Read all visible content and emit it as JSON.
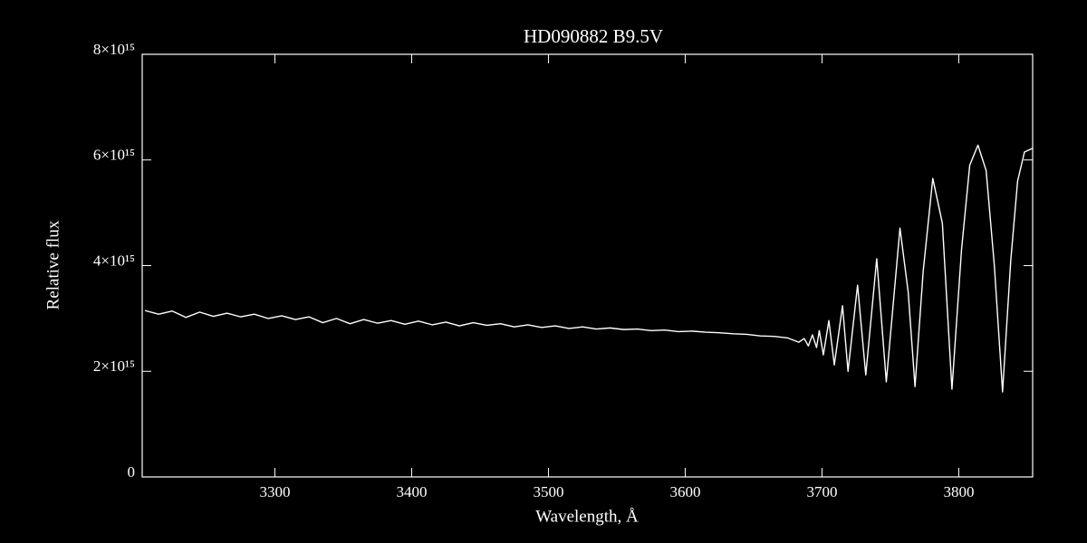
{
  "chart_data": {
    "type": "line",
    "title": "HD090882   B9.5V",
    "x_label": "Wavelength, Å",
    "y_label": "Relative flux",
    "x": [
      3205,
      3215,
      3225,
      3235,
      3245,
      3255,
      3265,
      3275,
      3285,
      3295,
      3305,
      3315,
      3325,
      3335,
      3345,
      3355,
      3365,
      3375,
      3385,
      3395,
      3405,
      3415,
      3425,
      3435,
      3445,
      3455,
      3465,
      3475,
      3485,
      3495,
      3505,
      3515,
      3525,
      3535,
      3545,
      3555,
      3565,
      3575,
      3585,
      3595,
      3605,
      3615,
      3625,
      3635,
      3645,
      3655,
      3665,
      3675,
      3683,
      3687,
      3690,
      3693,
      3696,
      3698,
      3701,
      3705,
      3709,
      3715,
      3719,
      3726,
      3732,
      3740,
      3747,
      3757,
      3763,
      3768,
      3774,
      3781,
      3788,
      3795,
      3802,
      3808,
      3814,
      3820,
      3826,
      3832,
      3838,
      3843,
      3848,
      3854
    ],
    "series": [
      {
        "color": "#ffffff",
        "values": [
          3150000000000000.0,
          3080000000000000.0,
          3140000000000000.0,
          3020000000000000.0,
          3120000000000000.0,
          3040000000000000.0,
          3100000000000000.0,
          3030000000000000.0,
          3080000000000000.0,
          3000000000000000.0,
          3050000000000000.0,
          2980000000000000.0,
          3030000000000000.0,
          2920000000000000.0,
          3000000000000000.0,
          2900000000000000.0,
          2980000000000000.0,
          2910000000000000.0,
          2960000000000000.0,
          2890000000000000.0,
          2950000000000000.0,
          2880000000000000.0,
          2930000000000000.0,
          2860000000000000.0,
          2920000000000000.0,
          2870000000000000.0,
          2900000000000000.0,
          2840000000000000.0,
          2880000000000000.0,
          2830000000000000.0,
          2860000000000000.0,
          2810000000000000.0,
          2840000000000000.0,
          2800000000000000.0,
          2820000000000000.0,
          2790000000000000.0,
          2800000000000000.0,
          2770000000000000.0,
          2780000000000000.0,
          2750000000000000.0,
          2760000000000000.0,
          2740000000000000.0,
          2730000000000000.0,
          2710000000000000.0,
          2700000000000000.0,
          2670000000000000.0,
          2660000000000000.0,
          2630000000000000.0,
          2550000000000000.0,
          2620000000000000.0,
          2480000000000000.0,
          2690000000000000.0,
          2450000000000000.0,
          2770000000000000.0,
          2310000000000000.0,
          2960000000000000.0,
          2120000000000000.0,
          3240000000000000.0,
          2000000000000000.0,
          3630000000000000.0,
          1930000000000000.0,
          4130000000000000.0,
          1800000000000000.0,
          4710000000000000.0,
          3500000000000000.0,
          1710000000000000.0,
          3900000000000000.0,
          5650000000000000.0,
          4800000000000000.0,
          1660000000000000.0,
          4300000000000000.0,
          5900000000000000.0,
          6280000000000000.0,
          5800000000000000.0,
          4000000000000000.0,
          1610000000000000.0,
          4100000000000000.0,
          5600000000000000.0,
          6150000000000000.0,
          6220000000000000.0
        ]
      }
    ],
    "xlim": [
      3203,
      3854
    ],
    "xticks": [
      3300,
      3400,
      3500,
      3600,
      3700,
      3800
    ],
    "ylim": [
      0,
      8000000000000000.0
    ],
    "yticks": [
      0,
      {
        "value": 2000000000000000.0,
        "label": "2×10¹⁵"
      },
      {
        "value": 4000000000000000.0,
        "label": "4×10¹⁵"
      },
      {
        "value": 6000000000000000.0,
        "label": "6×10¹⁵"
      },
      {
        "value": 8000000000000000.0,
        "label": "8×10¹⁵"
      }
    ]
  }
}
